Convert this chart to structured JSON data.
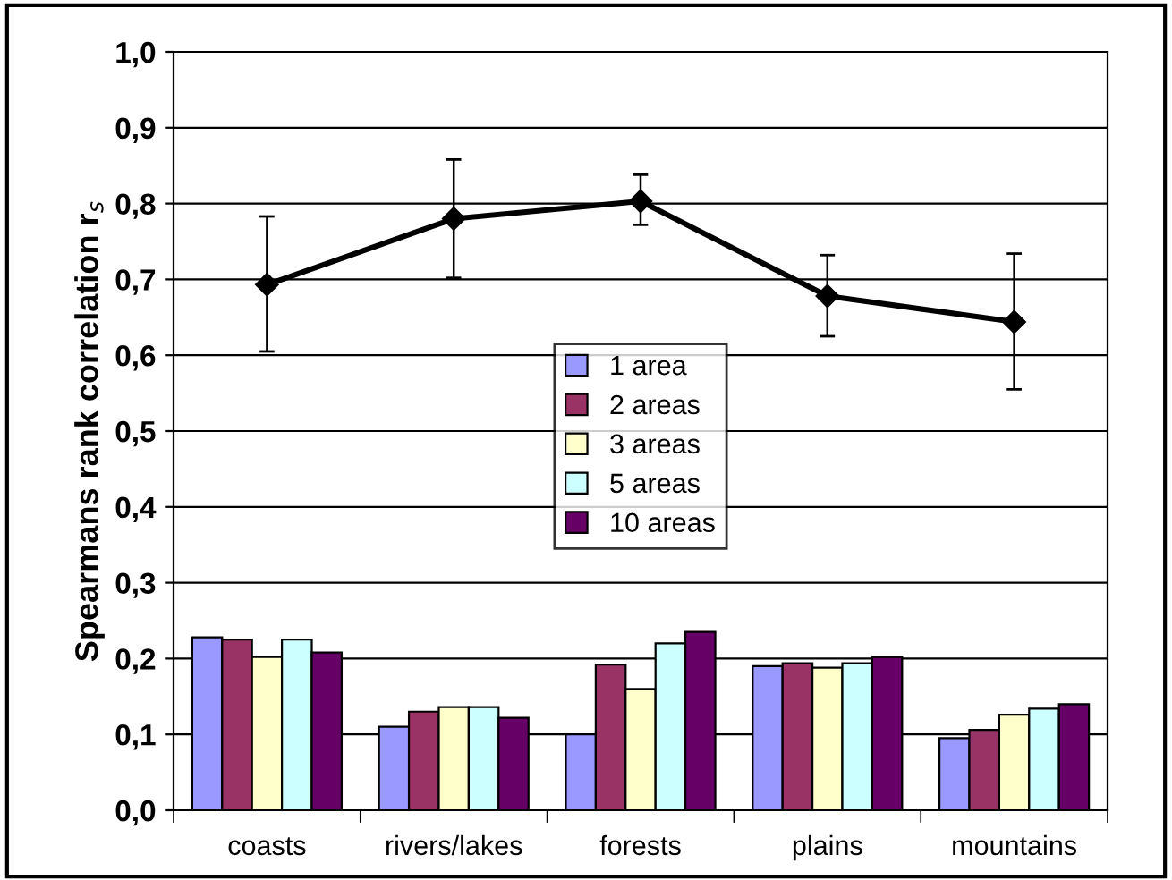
{
  "chart_data": {
    "type": "bar",
    "ylabel": "Spearmans rank correlation r$_{s}$",
    "categories": [
      "coasts",
      "rivers/lakes",
      "forests",
      "plains",
      "mountains"
    ],
    "series": [
      {
        "name": "1 area",
        "color": "#9999ff",
        "values": [
          0.228,
          0.11,
          0.1,
          0.19,
          0.095
        ]
      },
      {
        "name": "2 areas",
        "color": "#993366",
        "values": [
          0.225,
          0.13,
          0.192,
          0.194,
          0.106
        ]
      },
      {
        "name": "3 areas",
        "color": "#ffffcc",
        "values": [
          0.202,
          0.136,
          0.16,
          0.188,
          0.126
        ]
      },
      {
        "name": "5 areas",
        "color": "#ccffff",
        "values": [
          0.225,
          0.136,
          0.22,
          0.194,
          0.134
        ]
      },
      {
        "name": "10 areas",
        "color": "#660066",
        "values": [
          0.208,
          0.122,
          0.235,
          0.202,
          0.14
        ]
      },
      {
        "type": "line",
        "color": "#000000",
        "marker": "diamond",
        "values": [
          0.693,
          0.78,
          0.803,
          0.678,
          0.644
        ],
        "errors": [
          [
            0.605,
            0.783
          ],
          [
            0.702,
            0.858
          ],
          [
            0.772,
            0.838
          ],
          [
            0.625,
            0.732
          ],
          [
            0.555,
            0.734
          ]
        ]
      }
    ],
    "ylim": [
      0,
      1
    ],
    "yticks": [
      {
        "value": 0,
        "label": "0,0"
      },
      {
        "value": 0.1,
        "label": "0,1"
      },
      {
        "value": 0.2,
        "label": "0,2"
      },
      {
        "value": 0.3,
        "label": "0,3"
      },
      {
        "value": 0.4,
        "label": "0,4"
      },
      {
        "value": 0.5,
        "label": "0,5"
      },
      {
        "value": 0.6,
        "label": "0,6"
      },
      {
        "value": 0.7,
        "label": "0,7"
      },
      {
        "value": 0.8,
        "label": "0,8"
      },
      {
        "value": 0.9,
        "label": "0,9"
      },
      {
        "value": 1.0,
        "label": "1,0"
      }
    ],
    "grid": "y",
    "legend": "center"
  }
}
